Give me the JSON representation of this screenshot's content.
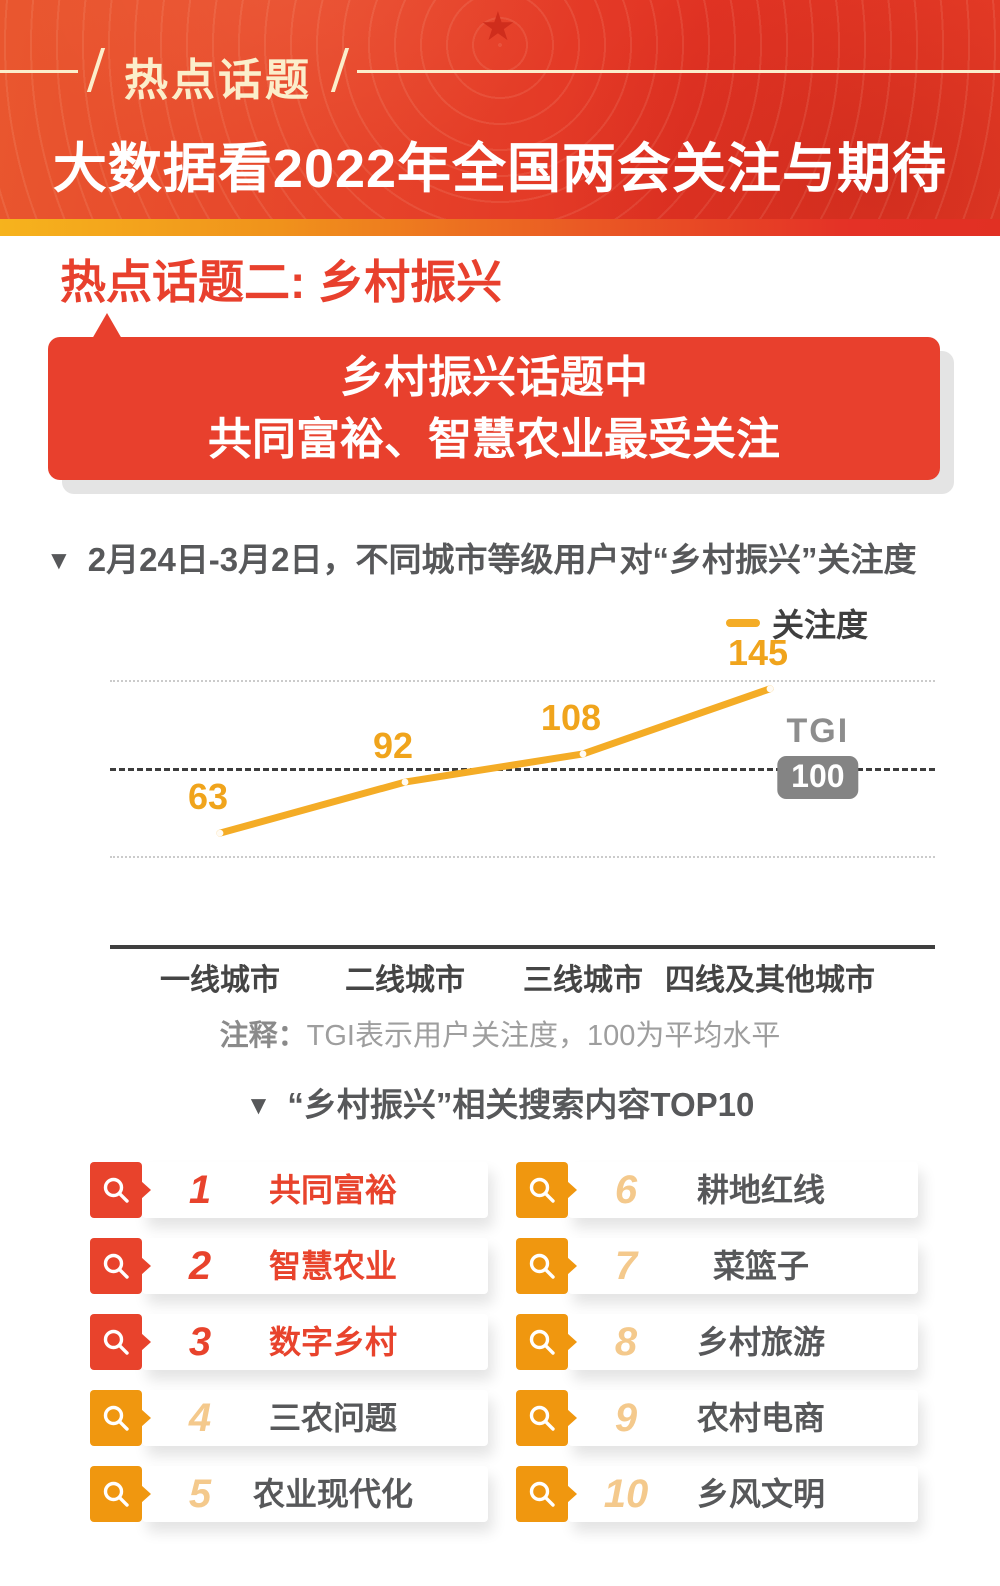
{
  "banner": {
    "tag": "热点话题",
    "title": "大数据看2022年全国两会关注与期待"
  },
  "section": {
    "heading": "热点话题二: 乡村振兴",
    "bubble_line1": "乡村振兴话题中",
    "bubble_line2": "共同富裕、智慧农业最受关注"
  },
  "chart": {
    "title": "2月24日-3月2日，不同城市等级用户对“乡村振兴”关注度",
    "legend_label": "关注度",
    "tgi_label": "TGI",
    "tgi_value": "100",
    "note_prefix": "注释：",
    "note_text": "TGI表示用户关注度，100为平均水平"
  },
  "chart_data": {
    "type": "line",
    "categories": [
      "一线城市",
      "二线城市",
      "三线城市",
      "四线及其他城市"
    ],
    "series": [
      {
        "name": "关注度",
        "values": [
          63,
          92,
          108,
          145
        ]
      }
    ],
    "baseline": {
      "label": "TGI",
      "value": 100
    },
    "gridlines": [
      {
        "value": 150,
        "emphasis": false
      },
      {
        "value": 100,
        "emphasis": true
      },
      {
        "value": 50,
        "emphasis": false
      }
    ],
    "ylim": [
      25,
      175
    ],
    "line_color": "#f4ac26",
    "value_label_color": "#f0a41c",
    "legend_position": "top-right",
    "grid": true
  },
  "top10": {
    "title": "“乡村振兴”相关搜索内容TOP10",
    "items": [
      {
        "rank": "1",
        "label": "共同富裕",
        "highlight": true
      },
      {
        "rank": "2",
        "label": "智慧农业",
        "highlight": true
      },
      {
        "rank": "3",
        "label": "数字乡村",
        "highlight": true
      },
      {
        "rank": "4",
        "label": "三农问题",
        "highlight": false
      },
      {
        "rank": "5",
        "label": "农业现代化",
        "highlight": false
      },
      {
        "rank": "6",
        "label": "耕地红线",
        "highlight": false
      },
      {
        "rank": "7",
        "label": "菜篮子",
        "highlight": false
      },
      {
        "rank": "8",
        "label": "乡村旅游",
        "highlight": false
      },
      {
        "rank": "9",
        "label": "农村电商",
        "highlight": false
      },
      {
        "rank": "10",
        "label": "乡风文明",
        "highlight": false
      }
    ]
  },
  "colors": {
    "banner_red": "#e6432a",
    "strip_gold": "#f6b31d",
    "accent_red": "#e8402d",
    "badge_red": "#e8432c",
    "badge_orange": "#f0970f",
    "rank_light_orange": "#f4c98c",
    "line_yellow": "#f4ac26",
    "tgi_badge_gray": "#848484",
    "text_dark_gray": "#57585a",
    "note_gray": "#9e9e9e",
    "banner_tag_cream": "#fbeecb"
  }
}
